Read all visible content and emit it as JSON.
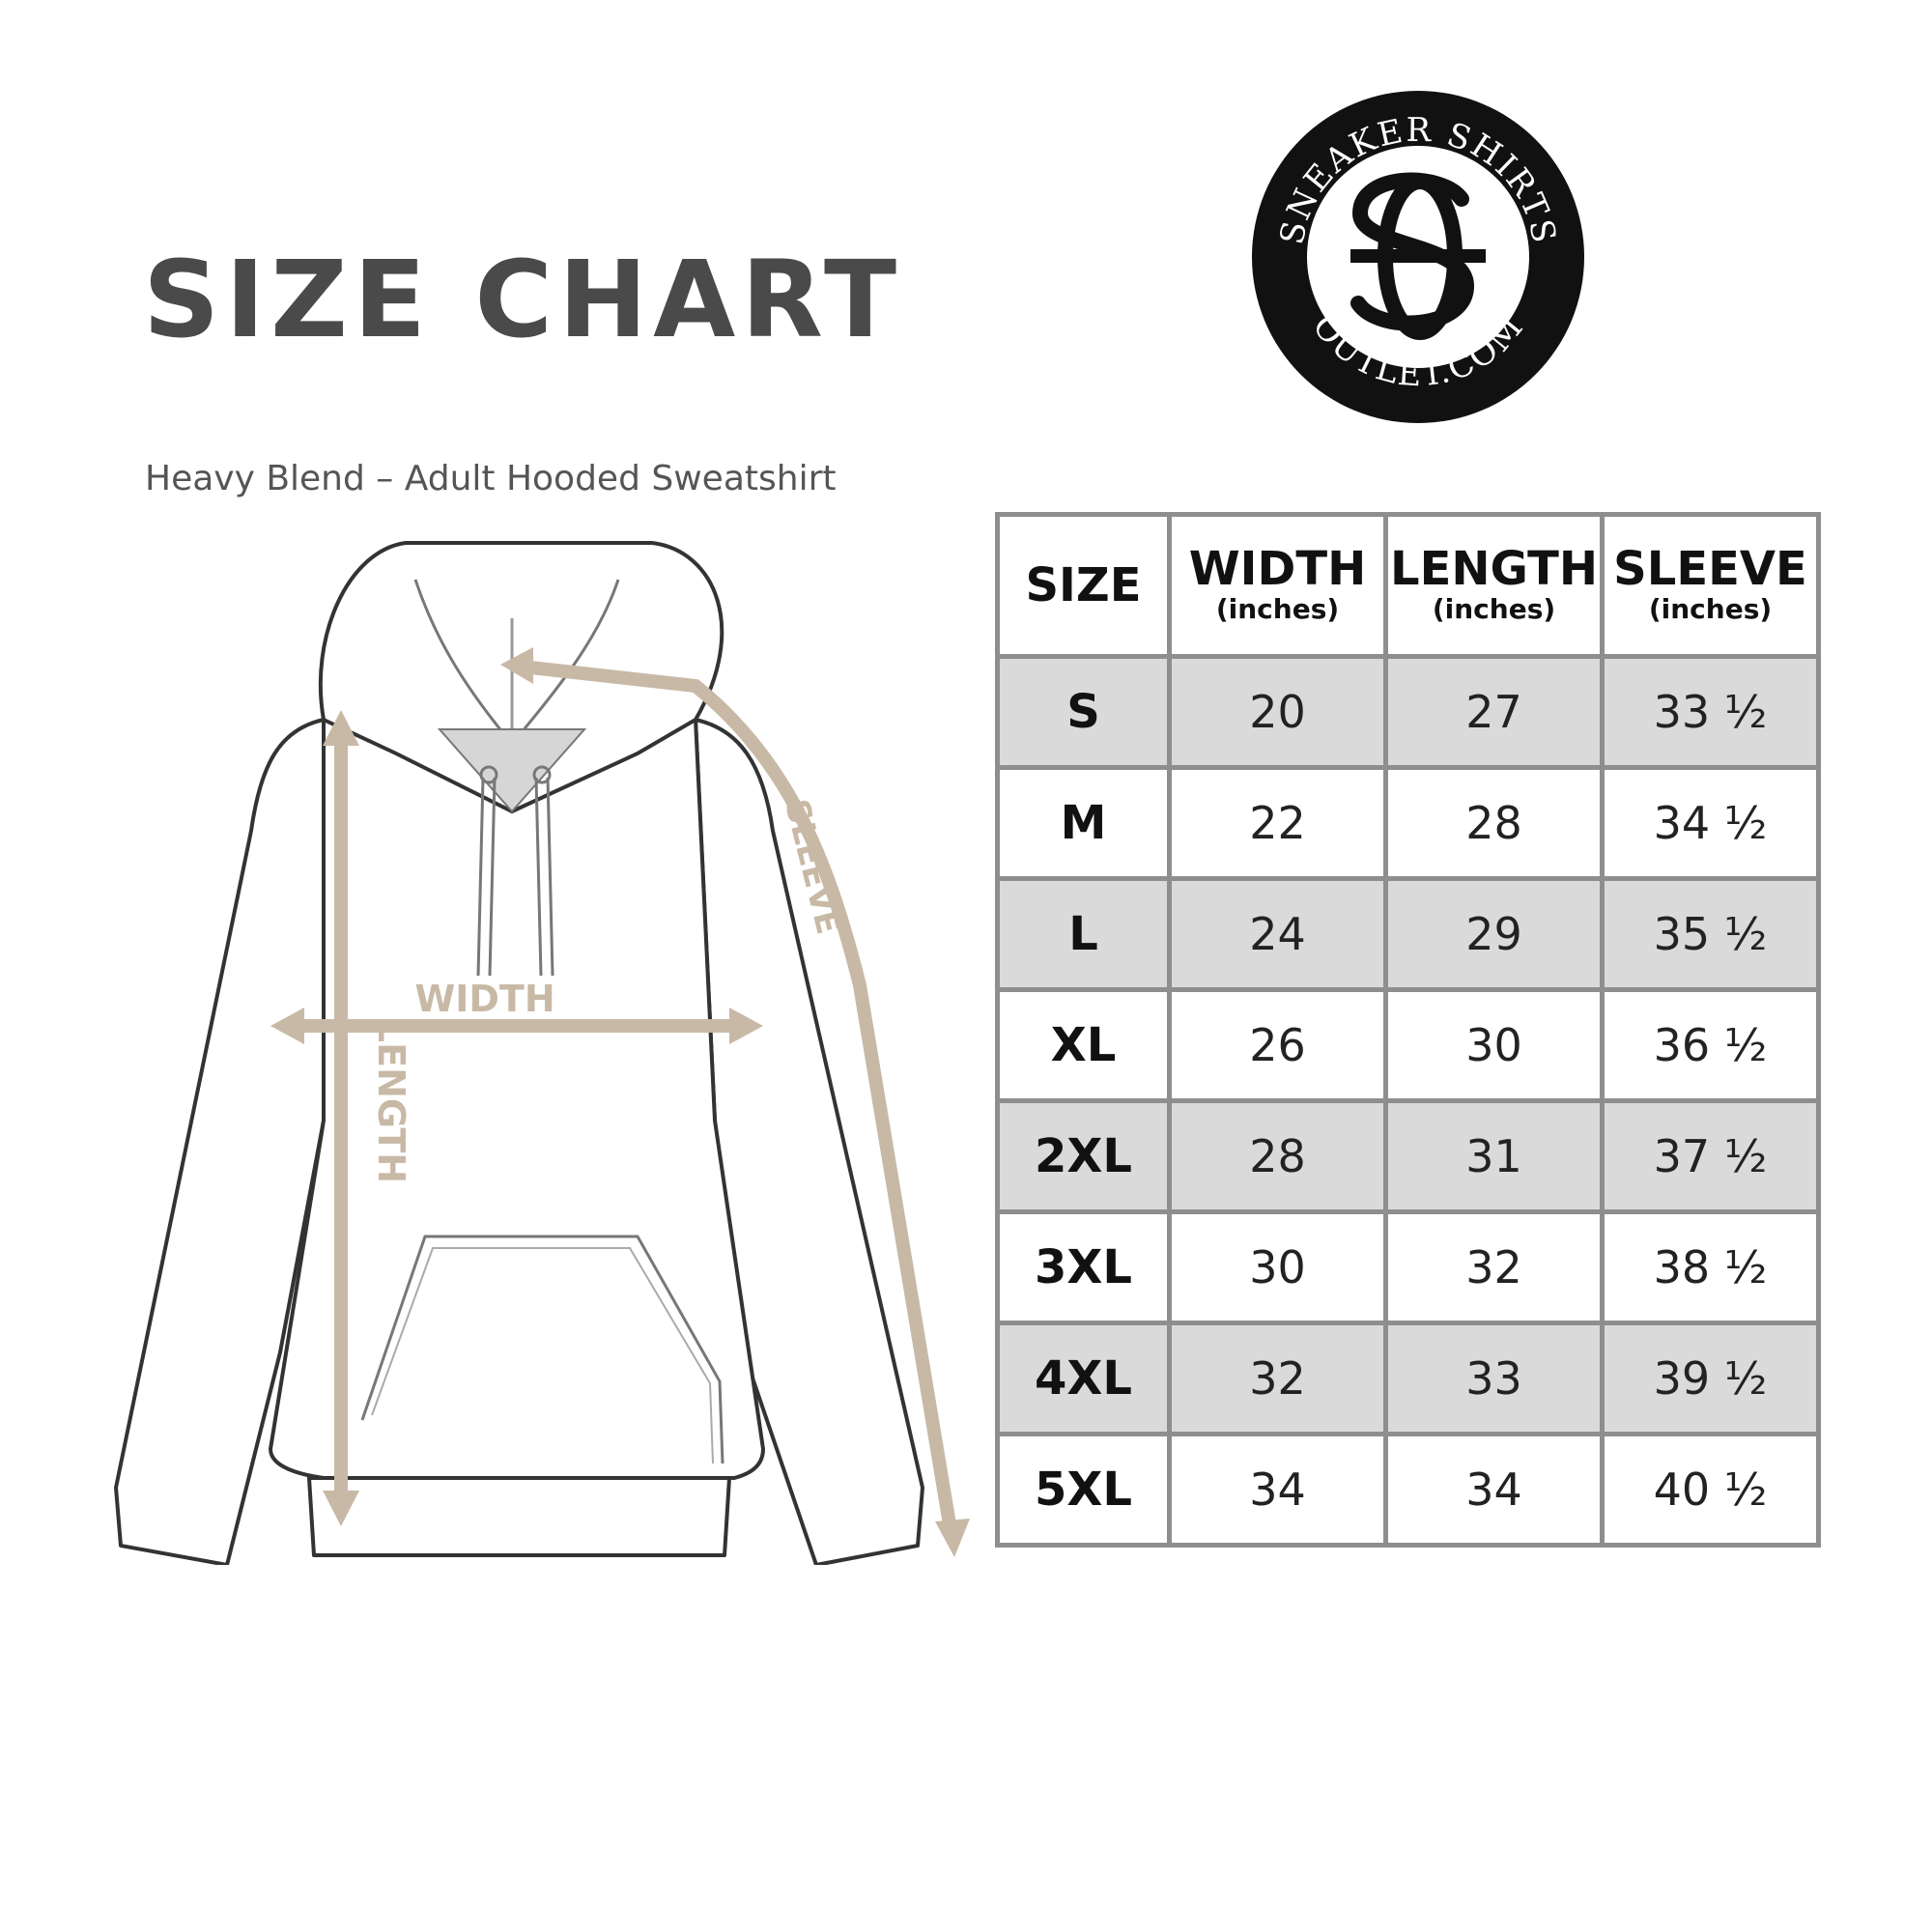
{
  "header": {
    "title": "SIZE CHART",
    "subtitle": "Heavy Blend – Adult Hooded Sweatshirt"
  },
  "logo": {
    "top_text": "SNEAKER SHIRTS",
    "bottom_text": "OUTLET.COM"
  },
  "diagram": {
    "width_label": "WIDTH",
    "length_label": "LENGTH",
    "sleeve_label": "SLEEVE",
    "measure_color": "#c8b9a6"
  },
  "table": {
    "headers": [
      {
        "label": "SIZE",
        "unit": ""
      },
      {
        "label": "WIDTH",
        "unit": "(inches)"
      },
      {
        "label": "LENGTH",
        "unit": "(inches)"
      },
      {
        "label": "SLEEVE",
        "unit": "(inches)"
      }
    ],
    "rows": [
      {
        "size": "S",
        "width": "20",
        "length": "27",
        "sleeve": "33 ½"
      },
      {
        "size": "M",
        "width": "22",
        "length": "28",
        "sleeve": "34 ½"
      },
      {
        "size": "L",
        "width": "24",
        "length": "29",
        "sleeve": "35 ½"
      },
      {
        "size": "XL",
        "width": "26",
        "length": "30",
        "sleeve": "36 ½"
      },
      {
        "size": "2XL",
        "width": "28",
        "length": "31",
        "sleeve": "37 ½"
      },
      {
        "size": "3XL",
        "width": "30",
        "length": "32",
        "sleeve": "38 ½"
      },
      {
        "size": "4XL",
        "width": "32",
        "length": "33",
        "sleeve": "39 ½"
      },
      {
        "size": "5XL",
        "width": "34",
        "length": "34",
        "sleeve": "40 ½"
      }
    ],
    "shade_color": "#dadada",
    "border_color": "#8e8e8e"
  }
}
